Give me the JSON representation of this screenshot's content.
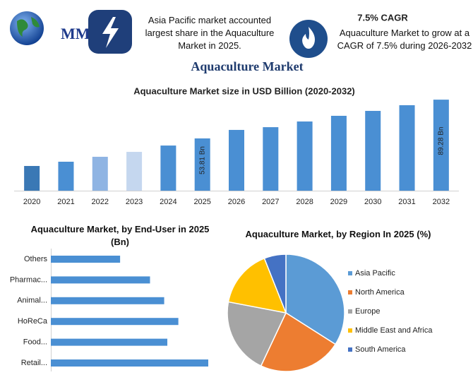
{
  "header": {
    "logo": "MMR",
    "note_left": "Asia Pacific market accounted largest share in the Aquaculture Market in 2025.",
    "cagr_title": "7.5% CAGR",
    "note_right": "Aquaculture Market to grow at a CAGR of 7.5% during 2026-2032"
  },
  "title": "Aquaculture Market",
  "chart_data": [
    {
      "type": "bar",
      "title": "Aquaculture Market size in USD Billion (2020-2032)",
      "categories": [
        "2020",
        "2021",
        "2022",
        "2023",
        "2024",
        "2025",
        "2026",
        "2027",
        "2028",
        "2029",
        "2030",
        "2031",
        "2032"
      ],
      "values": [
        28.6,
        32.5,
        37.0,
        41.5,
        47.3,
        53.81,
        61.6,
        64.1,
        69.3,
        74.5,
        79.0,
        84.2,
        89.28
      ],
      "value_labels": [
        null,
        null,
        null,
        null,
        null,
        "53.81 Bn",
        null,
        null,
        null,
        null,
        null,
        null,
        "89.28 Bn"
      ],
      "colors": [
        "#3a78b5",
        "#4a8fd3",
        "#8fb4e3",
        "#c5d7ef",
        "#4a8fd3",
        "#4a8fd3",
        "#4a8fd3",
        "#4a8fd3",
        "#4a8fd3",
        "#4a8fd3",
        "#4a8fd3",
        "#4a8fd3",
        "#4a8fd3"
      ],
      "ylim": [
        6,
        90
      ]
    },
    {
      "type": "hbar",
      "title": "Aquaculture Market, by End-User in 2025 (Bn)",
      "categories": [
        "Others",
        "Pharmac...",
        "Animal...",
        "HoReCa",
        "Food...",
        "Retail..."
      ],
      "values": [
        4.4,
        6.3,
        7.2,
        8.1,
        7.4,
        10.0
      ],
      "color": "#4a8fd3",
      "xlim": [
        0,
        10
      ]
    },
    {
      "type": "pie",
      "title": "Aquaculture Market, by Region In 2025 (%)",
      "categories": [
        "Asia Pacific",
        "North America",
        "Europe",
        "Middle East and Africa",
        "South America"
      ],
      "values": [
        34,
        23,
        21,
        16,
        6
      ],
      "colors": [
        "#5b9bd5",
        "#ed7d31",
        "#a5a5a5",
        "#ffc000",
        "#4472c4"
      ]
    }
  ]
}
